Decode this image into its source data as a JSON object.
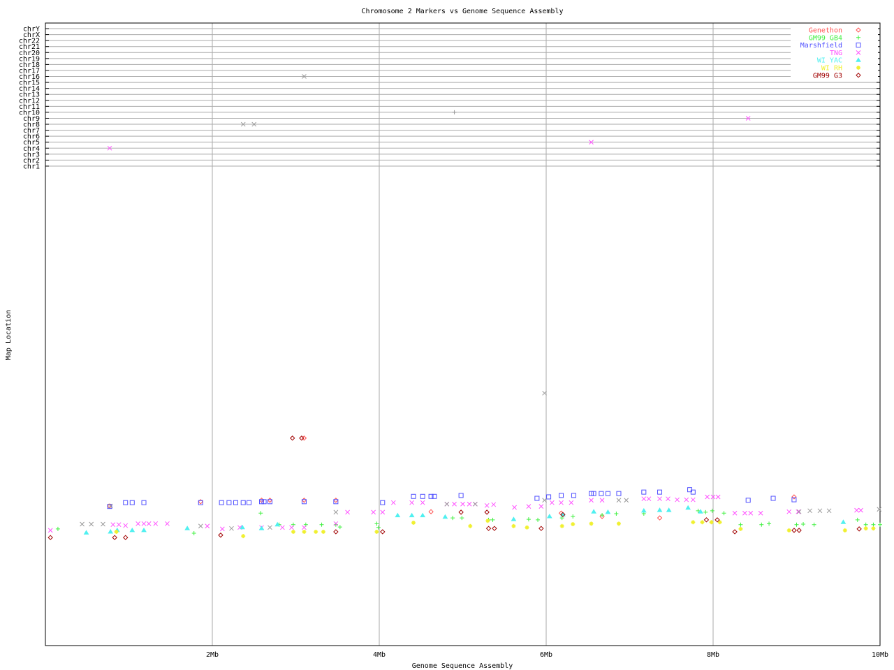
{
  "chart_data": {
    "type": "scatter",
    "title": "Chromosome 2 Markers vs Genome Sequence Assembly",
    "xlabel": "Genome Sequence Assembly",
    "ylabel": "Map Location",
    "xlim": [
      0,
      10
    ],
    "x_ticks": [
      {
        "v": 2,
        "label": "2Mb"
      },
      {
        "v": 4,
        "label": "4Mb"
      },
      {
        "v": 6,
        "label": "6Mb"
      },
      {
        "v": 8,
        "label": "8Mb"
      },
      {
        "v": 10,
        "label": "10Mb"
      }
    ],
    "chromosome_rows": [
      "chrY",
      "chrX",
      "chr22",
      "chr21",
      "chr20",
      "chr19",
      "chr18",
      "chr17",
      "chr16",
      "chr15",
      "chr14",
      "chr13",
      "chr12",
      "chr11",
      "chr10",
      "chr9",
      "chr8",
      "chr7",
      "chr6",
      "chr5",
      "chr4",
      "chr3",
      "chr2",
      "chr1"
    ],
    "chr2_map_scale": "unlabeled",
    "grid": true,
    "legend_position": "top-right",
    "series": [
      {
        "name": "Genethon",
        "color": "#ff5050",
        "marker": "diamond",
        "points": [
          [
            0.77,
            29.2
          ],
          [
            1.86,
            30.1
          ],
          [
            2.59,
            30.4
          ],
          [
            2.69,
            30.4
          ],
          [
            3.1,
            30.4
          ],
          [
            3.48,
            30.4
          ],
          [
            3.1,
            43.4
          ],
          [
            4.62,
            28.0
          ],
          [
            6.67,
            27.0
          ],
          [
            7.36,
            26.7
          ],
          [
            8.97,
            31.1
          ],
          [
            6.18,
            27.7
          ]
        ]
      },
      {
        "name": "GM99 GB4",
        "color": "#40f040",
        "marker": "plus",
        "points": [
          [
            0.15,
            24.4
          ],
          [
            1.78,
            23.5
          ],
          [
            2.58,
            27.7
          ],
          [
            2.8,
            25.3
          ],
          [
            2.97,
            25.3
          ],
          [
            3.12,
            25.3
          ],
          [
            3.31,
            25.3
          ],
          [
            3.48,
            25.3
          ],
          [
            3.53,
            24.8
          ],
          [
            3.97,
            25.5
          ],
          [
            3.99,
            24.7
          ],
          [
            4.88,
            26.7
          ],
          [
            4.99,
            26.7
          ],
          [
            5.31,
            26.3
          ],
          [
            5.36,
            26.3
          ],
          [
            5.79,
            26.4
          ],
          [
            5.9,
            26.3
          ],
          [
            6.19,
            26.7
          ],
          [
            6.32,
            27.0
          ],
          [
            6.67,
            27.3
          ],
          [
            6.84,
            27.6
          ],
          [
            7.17,
            27.6
          ],
          [
            7.82,
            28.2
          ],
          [
            7.91,
            27.9
          ],
          [
            7.99,
            28.2
          ],
          [
            8.13,
            27.7
          ],
          [
            8.33,
            25.3
          ],
          [
            8.58,
            25.3
          ],
          [
            8.67,
            25.5
          ],
          [
            9.0,
            25.3
          ],
          [
            9.08,
            25.4
          ],
          [
            9.21,
            25.3
          ],
          [
            9.73,
            26.3
          ],
          [
            9.83,
            25.3
          ],
          [
            9.92,
            25.3
          ],
          [
            10.0,
            25.3
          ]
        ]
      },
      {
        "name": "Marshfield",
        "color": "#5050ff",
        "marker": "square",
        "points": [
          [
            0.77,
            29.1
          ],
          [
            0.96,
            29.9
          ],
          [
            1.04,
            29.9
          ],
          [
            1.18,
            29.9
          ],
          [
            1.86,
            29.9
          ],
          [
            2.11,
            29.9
          ],
          [
            2.2,
            29.9
          ],
          [
            2.28,
            29.9
          ],
          [
            2.37,
            29.9
          ],
          [
            2.44,
            29.9
          ],
          [
            2.59,
            30.1
          ],
          [
            2.62,
            30.1
          ],
          [
            2.69,
            30.1
          ],
          [
            3.1,
            30.1
          ],
          [
            3.48,
            30.1
          ],
          [
            4.04,
            29.9
          ],
          [
            4.41,
            31.2
          ],
          [
            4.52,
            31.2
          ],
          [
            4.62,
            31.2
          ],
          [
            4.66,
            31.2
          ],
          [
            4.98,
            31.4
          ],
          [
            5.89,
            30.8
          ],
          [
            6.03,
            31.1
          ],
          [
            6.18,
            31.4
          ],
          [
            6.33,
            31.4
          ],
          [
            6.54,
            31.8
          ],
          [
            6.57,
            31.8
          ],
          [
            6.66,
            31.8
          ],
          [
            6.74,
            31.8
          ],
          [
            6.87,
            31.8
          ],
          [
            7.17,
            32.1
          ],
          [
            7.36,
            32.1
          ],
          [
            7.72,
            32.6
          ],
          [
            7.76,
            32.1
          ],
          [
            8.42,
            30.4
          ],
          [
            8.72,
            30.8
          ],
          [
            8.97,
            30.5
          ]
        ]
      },
      {
        "name": "TNG",
        "color": "#ff50ff",
        "marker": "x",
        "points": [
          [
            0.06,
            24.1
          ],
          [
            0.81,
            25.3
          ],
          [
            0.88,
            25.3
          ],
          [
            0.96,
            25.1
          ],
          [
            1.11,
            25.5
          ],
          [
            1.18,
            25.5
          ],
          [
            1.24,
            25.5
          ],
          [
            1.32,
            25.5
          ],
          [
            1.46,
            25.5
          ],
          [
            1.94,
            25.0
          ],
          [
            2.12,
            24.4
          ],
          [
            2.33,
            24.7
          ],
          [
            2.59,
            24.7
          ],
          [
            2.84,
            24.7
          ],
          [
            2.95,
            24.7
          ],
          [
            3.1,
            24.7
          ],
          [
            3.48,
            25.5
          ],
          [
            3.62,
            27.9
          ],
          [
            3.93,
            27.9
          ],
          [
            4.04,
            27.9
          ],
          [
            4.17,
            29.9
          ],
          [
            4.39,
            29.9
          ],
          [
            4.52,
            29.9
          ],
          [
            4.81,
            29.6
          ],
          [
            4.9,
            29.6
          ],
          [
            5.0,
            29.6
          ],
          [
            5.08,
            29.6
          ],
          [
            5.15,
            29.6
          ],
          [
            5.29,
            29.3
          ],
          [
            5.37,
            29.5
          ],
          [
            5.62,
            28.9
          ],
          [
            5.79,
            29.1
          ],
          [
            5.94,
            29.1
          ],
          [
            6.07,
            29.9
          ],
          [
            6.18,
            29.9
          ],
          [
            6.3,
            29.9
          ],
          [
            6.54,
            30.4
          ],
          [
            6.67,
            30.4
          ],
          [
            7.17,
            30.7
          ],
          [
            7.23,
            30.7
          ],
          [
            7.36,
            30.7
          ],
          [
            7.46,
            30.7
          ],
          [
            7.57,
            30.5
          ],
          [
            7.68,
            30.5
          ],
          [
            7.76,
            30.5
          ],
          [
            7.93,
            31.1
          ],
          [
            8.0,
            31.1
          ],
          [
            8.06,
            31.1
          ],
          [
            8.26,
            27.7
          ],
          [
            8.38,
            27.7
          ],
          [
            8.45,
            27.7
          ],
          [
            8.57,
            27.7
          ],
          [
            8.91,
            28.0
          ],
          [
            9.02,
            28.0
          ],
          [
            9.72,
            28.3
          ],
          [
            9.77,
            28.3
          ]
        ],
        "other_chr_points": [
          {
            "x": 0.77,
            "chr": "chr4"
          },
          {
            "x": 6.54,
            "chr": "chr5"
          },
          {
            "x": 8.42,
            "chr": "chr9"
          }
        ]
      },
      {
        "name": "WI YAC",
        "color": "#50f0f0",
        "marker": "triangle",
        "points": [
          [
            0.49,
            23.6
          ],
          [
            0.78,
            23.8
          ],
          [
            0.86,
            24.1
          ],
          [
            1.04,
            24.1
          ],
          [
            1.18,
            24.1
          ],
          [
            1.7,
            24.5
          ],
          [
            2.36,
            24.7
          ],
          [
            2.59,
            24.5
          ],
          [
            2.78,
            25.3
          ],
          [
            4.22,
            27.2
          ],
          [
            4.39,
            27.2
          ],
          [
            4.52,
            27.2
          ],
          [
            4.79,
            26.9
          ],
          [
            5.61,
            26.4
          ],
          [
            6.04,
            27.0
          ],
          [
            6.2,
            27.4
          ],
          [
            6.57,
            28.0
          ],
          [
            6.74,
            27.9
          ],
          [
            7.17,
            28.2
          ],
          [
            7.36,
            28.3
          ],
          [
            7.47,
            28.3
          ],
          [
            7.7,
            28.8
          ],
          [
            7.85,
            28.0
          ],
          [
            9.56,
            25.8
          ]
        ]
      },
      {
        "name": "WI RH",
        "color": "#f0f030",
        "marker": "star",
        "points": [
          [
            0.85,
            23.8
          ],
          [
            2.37,
            22.9
          ],
          [
            2.97,
            23.8
          ],
          [
            3.1,
            23.8
          ],
          [
            3.24,
            23.8
          ],
          [
            3.33,
            23.8
          ],
          [
            3.97,
            23.8
          ],
          [
            4.41,
            25.7
          ],
          [
            5.09,
            25.0
          ],
          [
            5.3,
            26.1
          ],
          [
            5.61,
            25.0
          ],
          [
            5.77,
            24.7
          ],
          [
            6.19,
            25.0
          ],
          [
            6.32,
            25.4
          ],
          [
            6.54,
            25.5
          ],
          [
            6.87,
            25.5
          ],
          [
            7.76,
            25.8
          ],
          [
            7.87,
            25.8
          ],
          [
            7.98,
            25.8
          ],
          [
            8.08,
            25.8
          ],
          [
            8.33,
            24.4
          ],
          [
            8.91,
            24.1
          ],
          [
            9.58,
            24.1
          ],
          [
            9.83,
            24.5
          ],
          [
            9.92,
            24.5
          ]
        ]
      },
      {
        "name": "GM99 G3",
        "color": "#a00000",
        "marker": "diamond",
        "points": [
          [
            0.06,
            22.6
          ],
          [
            0.83,
            22.6
          ],
          [
            0.96,
            22.6
          ],
          [
            2.1,
            23.1
          ],
          [
            3.07,
            43.4
          ],
          [
            2.96,
            43.4
          ],
          [
            3.48,
            23.8
          ],
          [
            4.04,
            23.8
          ],
          [
            4.98,
            27.9
          ],
          [
            5.29,
            27.9
          ],
          [
            5.31,
            24.5
          ],
          [
            5.38,
            24.5
          ],
          [
            5.94,
            24.5
          ],
          [
            6.2,
            27.4
          ],
          [
            7.92,
            26.3
          ],
          [
            8.26,
            23.8
          ],
          [
            8.97,
            24.1
          ],
          [
            9.03,
            24.1
          ],
          [
            9.75,
            24.4
          ],
          [
            8.05,
            26.3
          ]
        ]
      },
      {
        "color": "#999999",
        "marker": "x",
        "points": [
          [
            0.44,
            25.4
          ],
          [
            0.55,
            25.4
          ],
          [
            0.69,
            25.4
          ],
          [
            0.78,
            29.2
          ],
          [
            1.86,
            25.0
          ],
          [
            2.23,
            24.5
          ],
          [
            2.69,
            24.7
          ],
          [
            3.48,
            27.9
          ],
          [
            4.81,
            29.6
          ],
          [
            5.15,
            29.6
          ],
          [
            5.98,
            52.8
          ],
          [
            5.98,
            30.4
          ],
          [
            6.87,
            30.4
          ],
          [
            6.96,
            30.4
          ],
          [
            9.03,
            28.0
          ],
          [
            9.16,
            28.2
          ],
          [
            9.28,
            28.2
          ],
          [
            9.39,
            28.2
          ],
          [
            9.99,
            28.5
          ]
        ],
        "other_chr_points": [
          {
            "x": 2.37,
            "chr": "chr8"
          },
          {
            "x": 2.5,
            "chr": "chr8"
          },
          {
            "x": 3.1,
            "chr": "chr16"
          }
        ]
      },
      {
        "color": "#999999",
        "marker": "plus",
        "points": [],
        "other_chr_points": [
          {
            "x": 4.9,
            "chr": "chr10"
          }
        ]
      }
    ]
  }
}
